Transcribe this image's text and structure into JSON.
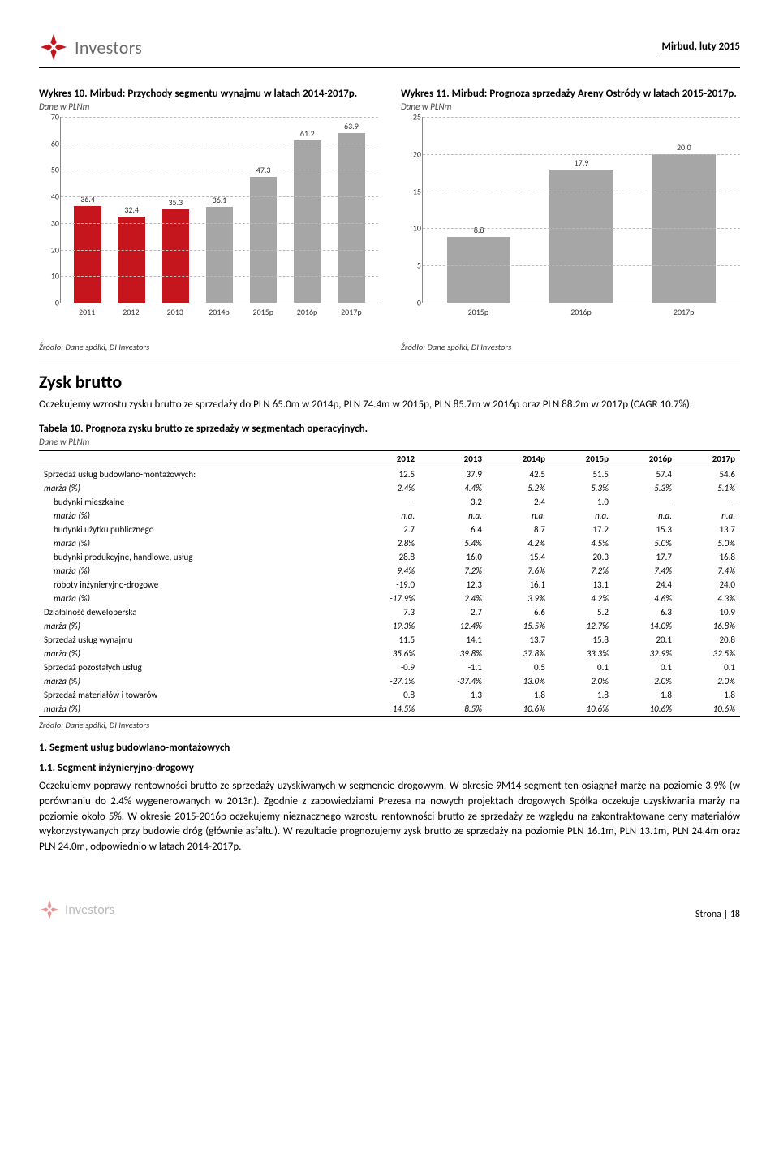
{
  "header": {
    "brand": "Investors",
    "right": "Mirbud, luty 2015",
    "logo_color": "#c4161c"
  },
  "chart_left": {
    "title": "Wykres 10. Mirbud: Przychody segmentu wynajmu w latach 2014-2017p.",
    "sub": "Dane w PLNm",
    "ymax": 70,
    "ystep": 10,
    "categories": [
      "2011",
      "2012",
      "2013",
      "2014p",
      "2015p",
      "2016p",
      "2017p"
    ],
    "values": [
      36.4,
      32.4,
      35.3,
      36.1,
      47.3,
      61.2,
      63.9
    ],
    "colors": [
      "#c4161c",
      "#c4161c",
      "#c4161c",
      "#a6a6a6",
      "#a6a6a6",
      "#a6a6a6",
      "#a6a6a6"
    ],
    "source": "Źródło: Dane spółki, DI Investors"
  },
  "chart_right": {
    "title": "Wykres 11. Mirbud: Prognoza sprzedaży Areny Ostródy w latach 2015-2017p.",
    "sub": "Dane w PLNm",
    "ymax": 25,
    "ystep": 5,
    "categories": [
      "2015p",
      "2016p",
      "2017p"
    ],
    "values": [
      8.8,
      17.9,
      20.0
    ],
    "colors": [
      "#a6a6a6",
      "#a6a6a6",
      "#a6a6a6"
    ],
    "source": "Źródło: Dane spółki, DI Investors"
  },
  "section_heading": "Zysk brutto",
  "section_text": "Oczekujemy wzrostu zysku brutto ze sprzedaży do PLN 65.0m w 2014p, PLN 74.4m w 2015p, PLN 85.7m w 2016p oraz PLN 88.2m w 2017p (CAGR 10.7%).",
  "table": {
    "title": "Tabela 10. Prognoza zysku brutto ze sprzedaży w segmentach operacyjnych.",
    "sub": "Dane w PLNm",
    "columns": [
      "",
      "2012",
      "2013",
      "2014p",
      "2015p",
      "2016p",
      "2017p"
    ],
    "rows": [
      {
        "label": "Sprzedaż usług budowlano-montażowych:",
        "v": [
          "12.5",
          "37.9",
          "42.5",
          "51.5",
          "57.4",
          "54.6"
        ],
        "italic": false,
        "indent": 0
      },
      {
        "label": "marża (%)",
        "v": [
          "2.4%",
          "4.4%",
          "5.2%",
          "5.3%",
          "5.3%",
          "5.1%"
        ],
        "italic": true,
        "indent": 0
      },
      {
        "label": "budynki mieszkalne",
        "v": [
          "-",
          "3.2",
          "2.4",
          "1.0",
          "-",
          "-"
        ],
        "italic": false,
        "indent": 1
      },
      {
        "label": "marża (%)",
        "v": [
          "n.a.",
          "n.a.",
          "n.a.",
          "n.a.",
          "n.a.",
          "n.a."
        ],
        "italic": true,
        "indent": 1
      },
      {
        "label": "budynki użytku publicznego",
        "v": [
          "2.7",
          "6.4",
          "8.7",
          "17.2",
          "15.3",
          "13.7"
        ],
        "italic": false,
        "indent": 1
      },
      {
        "label": "marża (%)",
        "v": [
          "2.8%",
          "5.4%",
          "4.2%",
          "4.5%",
          "5.0%",
          "5.0%"
        ],
        "italic": true,
        "indent": 1
      },
      {
        "label": "budynki produkcyjne, handlowe, usług",
        "v": [
          "28.8",
          "16.0",
          "15.4",
          "20.3",
          "17.7",
          "16.8"
        ],
        "italic": false,
        "indent": 1
      },
      {
        "label": "marża (%)",
        "v": [
          "9.4%",
          "7.2%",
          "7.6%",
          "7.2%",
          "7.4%",
          "7.4%"
        ],
        "italic": true,
        "indent": 1
      },
      {
        "label": "roboty inżynieryjno-drogowe",
        "v": [
          "-19.0",
          "12.3",
          "16.1",
          "13.1",
          "24.4",
          "24.0"
        ],
        "italic": false,
        "indent": 1
      },
      {
        "label": "marża (%)",
        "v": [
          "-17.9%",
          "2.4%",
          "3.9%",
          "4.2%",
          "4.6%",
          "4.3%"
        ],
        "italic": true,
        "indent": 1
      },
      {
        "label": "Działalność deweloperska",
        "v": [
          "7.3",
          "2.7",
          "6.6",
          "5.2",
          "6.3",
          "10.9"
        ],
        "italic": false,
        "indent": 0
      },
      {
        "label": "marża (%)",
        "v": [
          "19.3%",
          "12.4%",
          "15.5%",
          "12.7%",
          "14.0%",
          "16.8%"
        ],
        "italic": true,
        "indent": 0
      },
      {
        "label": "Sprzedaż usług wynajmu",
        "v": [
          "11.5",
          "14.1",
          "13.7",
          "15.8",
          "20.1",
          "20.8"
        ],
        "italic": false,
        "indent": 0
      },
      {
        "label": "marża (%)",
        "v": [
          "35.6%",
          "39.8%",
          "37.8%",
          "33.3%",
          "32.9%",
          "32.5%"
        ],
        "italic": true,
        "indent": 0
      },
      {
        "label": "Sprzedaż pozostałych usług",
        "v": [
          "-0.9",
          "-1.1",
          "0.5",
          "0.1",
          "0.1",
          "0.1"
        ],
        "italic": false,
        "indent": 0
      },
      {
        "label": "marża (%)",
        "v": [
          "-27.1%",
          "-37.4%",
          "13.0%",
          "2.0%",
          "2.0%",
          "2.0%"
        ],
        "italic": true,
        "indent": 0
      },
      {
        "label": "Sprzedaż materiałów i towarów",
        "v": [
          "0.8",
          "1.3",
          "1.8",
          "1.8",
          "1.8",
          "1.8"
        ],
        "italic": false,
        "indent": 0
      },
      {
        "label": "marża (%)",
        "v": [
          "14.5%",
          "8.5%",
          "10.6%",
          "10.6%",
          "10.6%",
          "10.6%"
        ],
        "italic": true,
        "indent": 0
      }
    ],
    "source": "Źródło: Dane spółki, DI Investors"
  },
  "h1_num": "1.    Segment usług budowlano-montażowych",
  "h2_num": "1.1. Segment inżynieryjno-drogowy",
  "para2": "Oczekujemy poprawy rentowności brutto ze sprzedaży uzyskiwanych w segmencie drogowym. W okresie 9M14 segment ten osiągnął marżę na poziomie 3.9% (w porównaniu do 2.4% wygenerowanych w 2013r.). Zgodnie z zapowiedziami Prezesa na nowych projektach drogowych Spółka oczekuje  uzyskiwania marży na poziomie około 5%. W okresie 2015-2016p oczekujemy nieznacznego wzrostu rentowności brutto ze sprzedaży ze względu na zakontraktowane ceny materiałów wykorzystywanych przy budowie dróg (głównie asfaltu). W rezultacie prognozujemy zysk brutto ze sprzedaży na poziomie PLN 16.1m, PLN 13.1m, PLN 24.4m oraz PLN 24.0m, odpowiednio w latach 2014-2017p.",
  "footer": {
    "page": "Strona | 18"
  }
}
